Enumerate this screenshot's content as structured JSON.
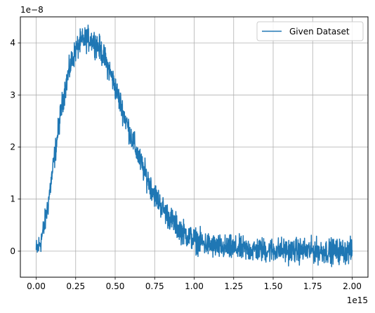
{
  "chart_data": {
    "type": "line",
    "title": "",
    "xlabel": "",
    "ylabel": "",
    "x_offset_label": "1e15",
    "y_offset_label": "1e−8",
    "xlim": [
      -0.1,
      2.1
    ],
    "ylim": [
      -0.5,
      4.5
    ],
    "xticks": [
      0.0,
      0.25,
      0.5,
      0.75,
      1.0,
      1.25,
      1.5,
      1.75,
      2.0
    ],
    "xtick_labels": [
      "0.00",
      "0.25",
      "0.50",
      "0.75",
      "1.00",
      "1.25",
      "1.50",
      "1.75",
      "2.00"
    ],
    "yticks": [
      0,
      1,
      2,
      3,
      4
    ],
    "ytick_labels": [
      "0",
      "1",
      "2",
      "3",
      "4"
    ],
    "grid": true,
    "legend_position": "top-right",
    "series": [
      {
        "name": "Given Dataset",
        "color": "#1f77b4",
        "x": [
          0.0,
          0.025,
          0.05,
          0.075,
          0.1,
          0.125,
          0.15,
          0.175,
          0.2,
          0.225,
          0.25,
          0.275,
          0.3,
          0.325,
          0.35,
          0.375,
          0.4,
          0.425,
          0.45,
          0.475,
          0.5,
          0.525,
          0.55,
          0.575,
          0.6,
          0.625,
          0.65,
          0.675,
          0.7,
          0.725,
          0.75,
          0.775,
          0.8,
          0.825,
          0.85,
          0.875,
          0.9,
          0.925,
          0.95,
          0.975,
          1.0,
          1.05,
          1.1,
          1.15,
          1.2,
          1.25,
          1.3,
          1.35,
          1.4,
          1.45,
          1.5,
          1.55,
          1.6,
          1.65,
          1.7,
          1.75,
          1.8,
          1.85,
          1.9,
          1.95,
          2.0
        ],
        "values": [
          0.0,
          0.15,
          0.45,
          0.9,
          1.45,
          2.0,
          2.55,
          3.0,
          3.35,
          3.65,
          3.85,
          3.98,
          4.05,
          4.08,
          4.06,
          4.0,
          3.9,
          3.75,
          3.58,
          3.38,
          3.15,
          2.92,
          2.68,
          2.45,
          2.22,
          2.0,
          1.8,
          1.6,
          1.42,
          1.25,
          1.1,
          0.96,
          0.83,
          0.72,
          0.62,
          0.53,
          0.45,
          0.38,
          0.32,
          0.27,
          0.22,
          0.16,
          0.11,
          0.08,
          0.06,
          0.05,
          0.04,
          0.03,
          0.03,
          0.02,
          0.02,
          0.02,
          0.01,
          0.01,
          0.01,
          0.01,
          0.0,
          0.0,
          0.0,
          0.0,
          0.0
        ],
        "noise_amplitude": 0.18
      }
    ]
  }
}
